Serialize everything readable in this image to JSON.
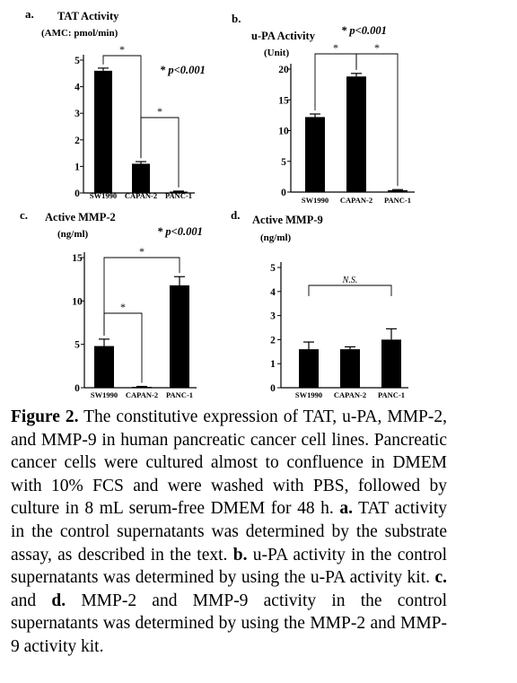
{
  "chart_data": [
    {
      "panel_label": "a.",
      "type": "bar",
      "title": "TAT Activity",
      "ylabel": "(AMC: pmol/min)",
      "categories": [
        "SW1990",
        "CAPAN-2",
        "PANC-1"
      ],
      "values": [
        4.6,
        1.1,
        0.05
      ],
      "errors": [
        0.1,
        0.08,
        0.02
      ],
      "ylim": [
        0,
        5
      ],
      "yticks": [
        "0",
        "1",
        "2",
        "3",
        "4",
        "5"
      ],
      "significance_note": "* p<0.001",
      "brackets": [
        {
          "from": 0,
          "to": 1,
          "label": "*"
        },
        {
          "from": 1,
          "to": 2,
          "label": "*"
        }
      ]
    },
    {
      "panel_label": "b.",
      "type": "bar",
      "title": "u-PA Activity",
      "ylabel": "(Unit)",
      "categories": [
        "SW1990",
        "CAPAN-2",
        "PANC-1"
      ],
      "values": [
        12.2,
        18.8,
        0.3
      ],
      "errors": [
        0.5,
        0.5,
        0.1
      ],
      "ylim": [
        0,
        20
      ],
      "yticks": [
        "0",
        "5",
        "10",
        "15",
        "20"
      ],
      "significance_note": "* p<0.001",
      "brackets": [
        {
          "from": 0,
          "to": 1,
          "label": "*"
        },
        {
          "from": 1,
          "to": 2,
          "label": "*"
        }
      ]
    },
    {
      "panel_label": "c.",
      "type": "bar",
      "title": "Active MMP-2",
      "ylabel": "(ng/ml)",
      "categories": [
        "SW1990",
        "CAPAN-2",
        "PANC-1"
      ],
      "values": [
        4.8,
        0.1,
        11.8
      ],
      "errors": [
        0.8,
        0.05,
        1.0
      ],
      "ylim": [
        0,
        15
      ],
      "yticks": [
        "0",
        "5",
        "10",
        "15"
      ],
      "significance_note": "* p<0.001",
      "brackets": [
        {
          "from": 0,
          "to": 2,
          "label": "*"
        },
        {
          "from": 0,
          "to": 1,
          "label": "*"
        }
      ]
    },
    {
      "panel_label": "d.",
      "type": "bar",
      "title": "Active MMP-9",
      "ylabel": "(ng/ml)",
      "categories": [
        "SW1990",
        "CAPAN-2",
        "PANC-1"
      ],
      "values": [
        1.6,
        1.6,
        2.0
      ],
      "errors": [
        0.3,
        0.1,
        0.45
      ],
      "ylim": [
        0,
        5
      ],
      "yticks": [
        "0",
        "1",
        "2",
        "3",
        "4",
        "5"
      ],
      "significance_note": "",
      "brackets": [
        {
          "from": 0,
          "to": 2,
          "label": "N.S."
        }
      ]
    }
  ],
  "caption": {
    "figure_label": "Figure 2.",
    "intro": " The constitutive expression of TAT, u-PA, MMP-2, and MMP-9 in human pancreatic cancer cell lines. Pancreatic cancer cells were cultured almost to confluence in DMEM with 10% FCS and were washed with PBS, followed by culture in 8 mL serum-free DMEM for 48 h. ",
    "a_label": "a.",
    "a_text": " TAT activity in the control supernatants was determined by the substrate assay, as described in the text. ",
    "b_label": "b.",
    "b_text": " u-PA activity in the control supernatants was determined by using the u-PA activity kit. ",
    "c_label": "c.",
    "cd_join": " and ",
    "d_label": "d.",
    "d_text": " MMP-2 and MMP-9 activity in the control supernatants was determined by using the MMP-2 and MMP-9 activity kit."
  }
}
